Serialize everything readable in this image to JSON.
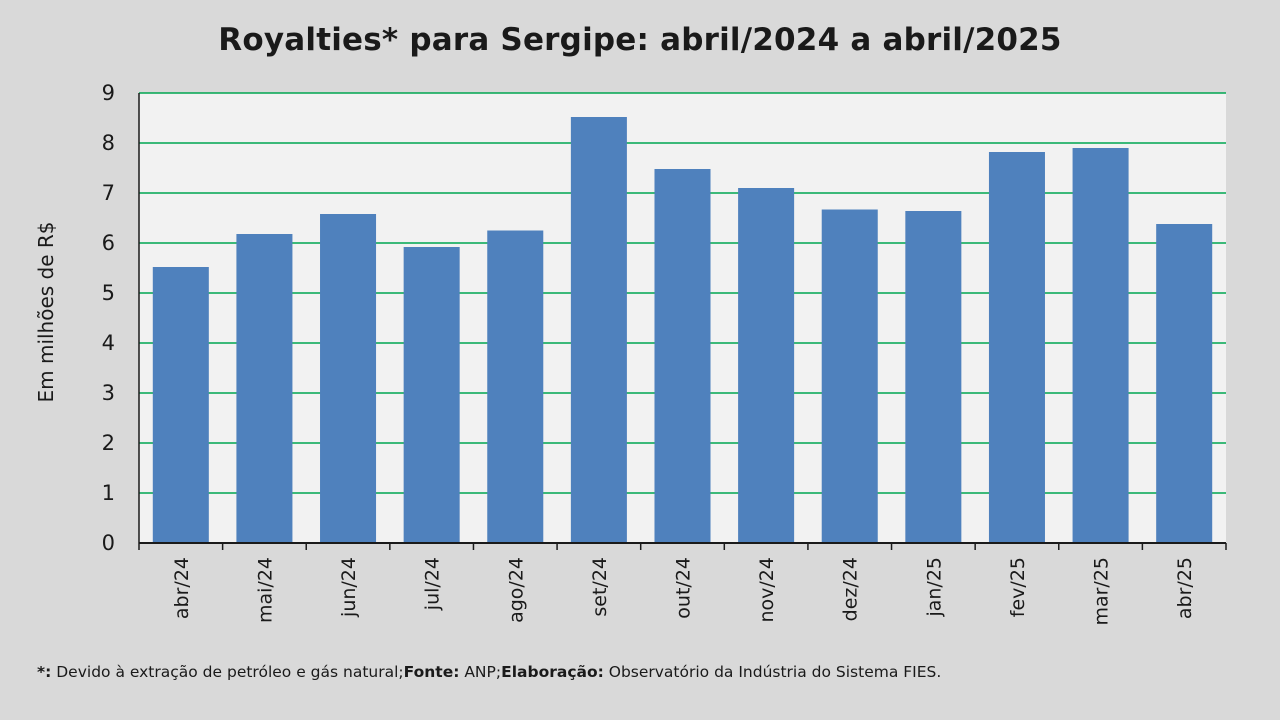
{
  "chart_data": {
    "type": "bar",
    "title": "Royalties* para Sergipe: abril/2024 a abril/2025",
    "xlabel": "",
    "ylabel": "Em milhões de R$",
    "ylim": [
      0,
      9
    ],
    "yticks": [
      "0",
      "1",
      "2",
      "3",
      "4",
      "5",
      "6",
      "7",
      "8",
      "9"
    ],
    "categories": [
      "abr/24",
      "mai/24",
      "jun/24",
      "jul/24",
      "ago/24",
      "set/24",
      "out/24",
      "nov/24",
      "dez/24",
      "jan/25",
      "fev/25",
      "mar/25",
      "abr/25"
    ],
    "values": [
      5.52,
      6.18,
      6.58,
      5.92,
      6.25,
      8.52,
      7.48,
      7.1,
      6.67,
      6.64,
      7.82,
      7.9,
      6.38
    ],
    "grid": true,
    "colors": {
      "bar": "#4f81bd",
      "grid": "#00a651",
      "plot_bg": "#f2f2f2",
      "axis": "#1a1a1a"
    }
  },
  "footnote": {
    "marker": "*:",
    "text1": " Devido à extração de petróleo e gás natural;",
    "source_label": "Fonte:",
    "source": " ANP;",
    "credit_label": "Elaboração:",
    "credit": " Observatório da Indústria do Sistema FIES."
  }
}
